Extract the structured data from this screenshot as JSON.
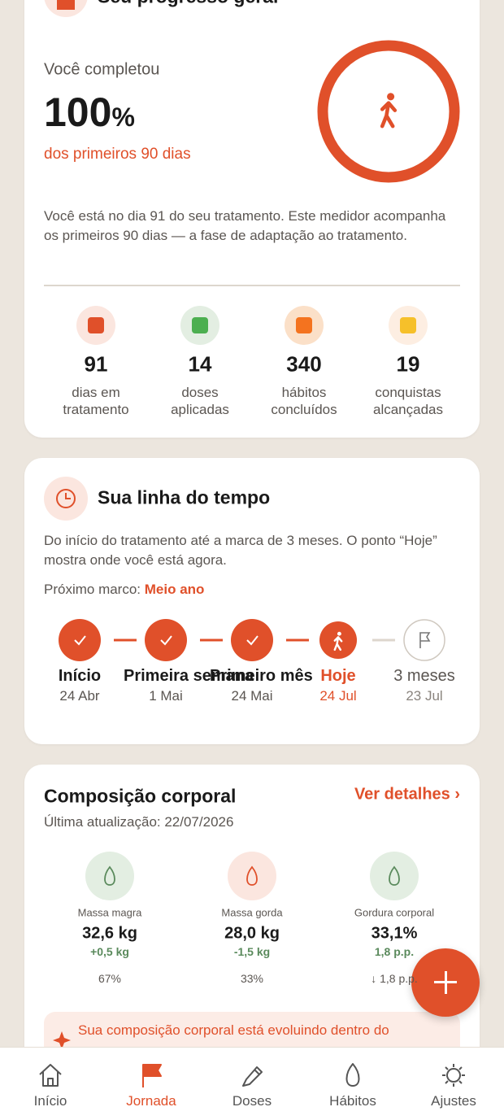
{
  "progress": {
    "title": "Seu progresso geral",
    "intro": "Você completou",
    "percent": 100,
    "percent_unit": "%",
    "subtitle": "dos primeiros 90 dias",
    "description": "Você está no dia 91 do seu tratamento. Este medidor acompanha os primeiros 90 dias — a fase de adaptação ao tratamento.",
    "stats": [
      {
        "value": 91,
        "label": "dias em tratamento"
      },
      {
        "value": 14,
        "label": "doses aplicadas"
      },
      {
        "value": 340,
        "label": "hábitos concluídos"
      },
      {
        "value": 19,
        "label": "conquistas alcançadas"
      }
    ]
  },
  "timeline": {
    "title": "Sua linha do tempo",
    "description": "Do início do tratamento até a marca de 3 meses. O ponto “Hoje” mostra onde você está agora.",
    "next_label": "Próximo marco:",
    "next_value": "Meio ano",
    "steps": [
      {
        "label": "Início",
        "date": "24 Abr",
        "state": "done"
      },
      {
        "label": "Primeira semana",
        "date": "1 Mai",
        "state": "done"
      },
      {
        "label": "Primeiro mês",
        "date": "24 Mai",
        "state": "done"
      },
      {
        "label": "Hoje",
        "date": "24 Jul",
        "state": "current"
      },
      {
        "label": "3 meses",
        "date": "23 Jul",
        "state": "future"
      }
    ]
  },
  "body": {
    "title": "Composição corporal",
    "link": "Ver detalhes ›",
    "updated": "Última atualização: 22/07/2026",
    "metrics": [
      {
        "label": "Massa magra",
        "value": "32,6 kg",
        "change": "+0,5 kg",
        "bar_value": 67,
        "bar_label": "67%",
        "color": "#5a8a5c",
        "icon_bg": "#e3eee2"
      },
      {
        "label": "Massa gorda",
        "value": "28,0 kg",
        "change": "-1,5 kg",
        "bar_value": 33,
        "bar_label": "33%",
        "color": "#e0502a",
        "icon_bg": "#fbe6df"
      },
      {
        "label": "Gordura corporal",
        "value": "33,1%",
        "change": "1,8 p.p.",
        "bar_value": 33,
        "bar_label": "↓ 1,8 p.p.",
        "color": "#5a8a5c",
        "icon_bg": "#e3eee2"
      }
    ],
    "alert": "Sua composição corporal está evoluindo dentro do"
  },
  "nav": [
    {
      "label": "Início",
      "active": false
    },
    {
      "label": "Jornada",
      "active": true
    },
    {
      "label": "Doses",
      "active": false
    },
    {
      "label": "Hábitos",
      "active": false
    },
    {
      "label": "Ajustes",
      "active": false
    }
  ]
}
